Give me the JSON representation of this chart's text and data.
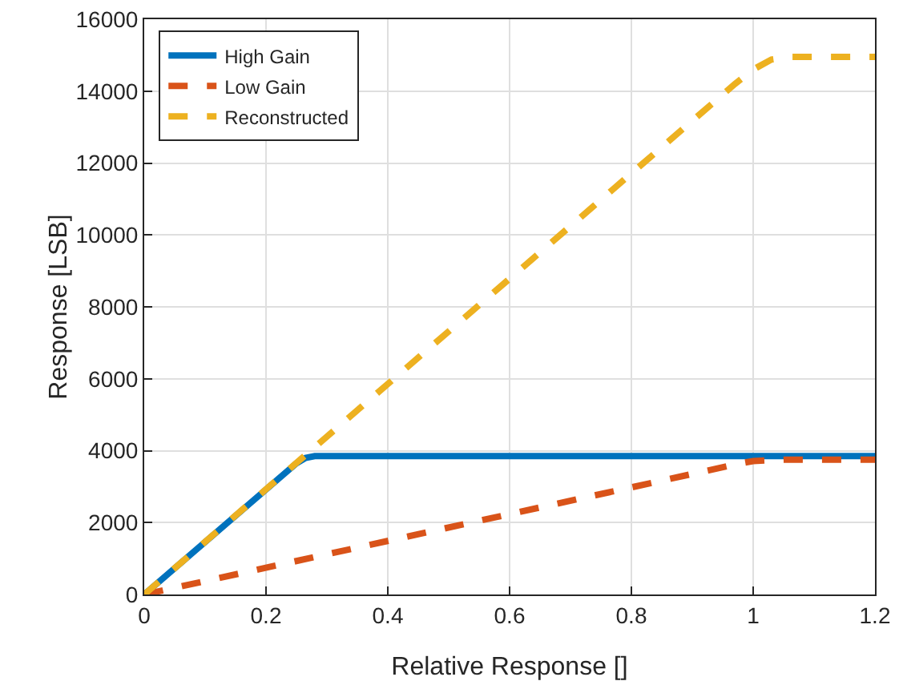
{
  "chart_data": {
    "type": "line",
    "xlabel": "Relative Response []",
    "ylabel": "Response [LSB]",
    "xlim": [
      0,
      1.2
    ],
    "xticks": [
      0,
      0.2,
      0.4,
      0.6,
      0.8,
      1,
      1.2
    ],
    "ylim": [
      0,
      16000
    ],
    "yticks": [
      0,
      2000,
      4000,
      6000,
      8000,
      10000,
      12000,
      14000,
      16000
    ],
    "grid": true,
    "legend": "top left",
    "marker": "none",
    "series": [
      {
        "name": "High Gain",
        "color": "#0072bd",
        "line_style": "solid",
        "x": [
          0,
          0.25,
          0.265,
          0.28,
          1.2
        ],
        "values": [
          0,
          3650,
          3800,
          3850,
          3850
        ]
      },
      {
        "name": "Low Gain",
        "color": "#d95319",
        "line_style": "dashed",
        "x": [
          0,
          0.98,
          1.0,
          1.05,
          1.2
        ],
        "values": [
          0,
          3650,
          3710,
          3750,
          3750
        ]
      },
      {
        "name": "Reconstructed",
        "color": "#edb120",
        "line_style": "dashed",
        "x": [
          0,
          0.97,
          1.0,
          1.03,
          1.06,
          1.2
        ],
        "values": [
          0,
          14200,
          14600,
          14880,
          14950,
          14950
        ]
      }
    ]
  }
}
